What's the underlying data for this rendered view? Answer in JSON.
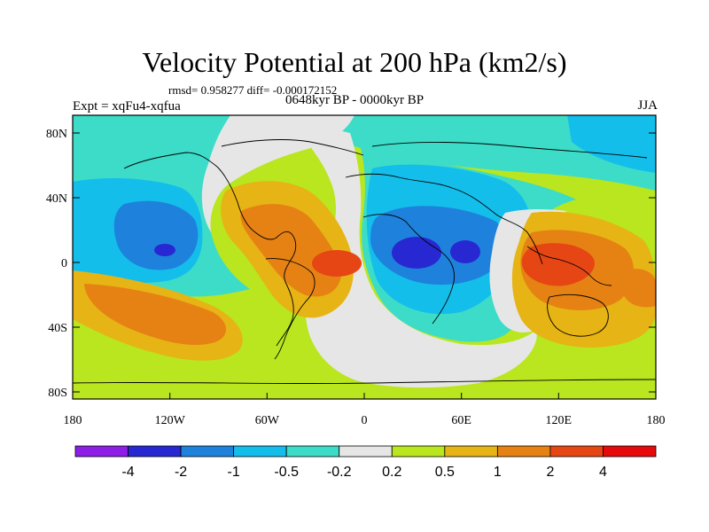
{
  "title": "Velocity Potential at 200 hPa (km2/s)",
  "stats": "rmsd= 0.958277 diff= -0.000172152",
  "left_label": "Expt = xqFu4-xqfua",
  "center_label": "0648kyr BP - 0000kyr BP",
  "right_label": "JJA",
  "lat_labels": [
    "80N",
    "40N",
    "0",
    "40S",
    "80S"
  ],
  "lon_labels": [
    "180",
    "120W",
    "60W",
    "0",
    "60E",
    "120E",
    "180"
  ],
  "colorbar": {
    "colors": [
      "#8c1ee6",
      "#2828d2",
      "#1e82dc",
      "#14beeb",
      "#3cdcc8",
      "#e6e6e6",
      "#b9e61e",
      "#e6b414",
      "#e68214",
      "#e64614",
      "#e60a0a"
    ],
    "labels": [
      "-4",
      "-2",
      "-1",
      "-0.5",
      "-0.2",
      "0.2",
      "0.5",
      "1",
      "2",
      "4"
    ]
  }
}
